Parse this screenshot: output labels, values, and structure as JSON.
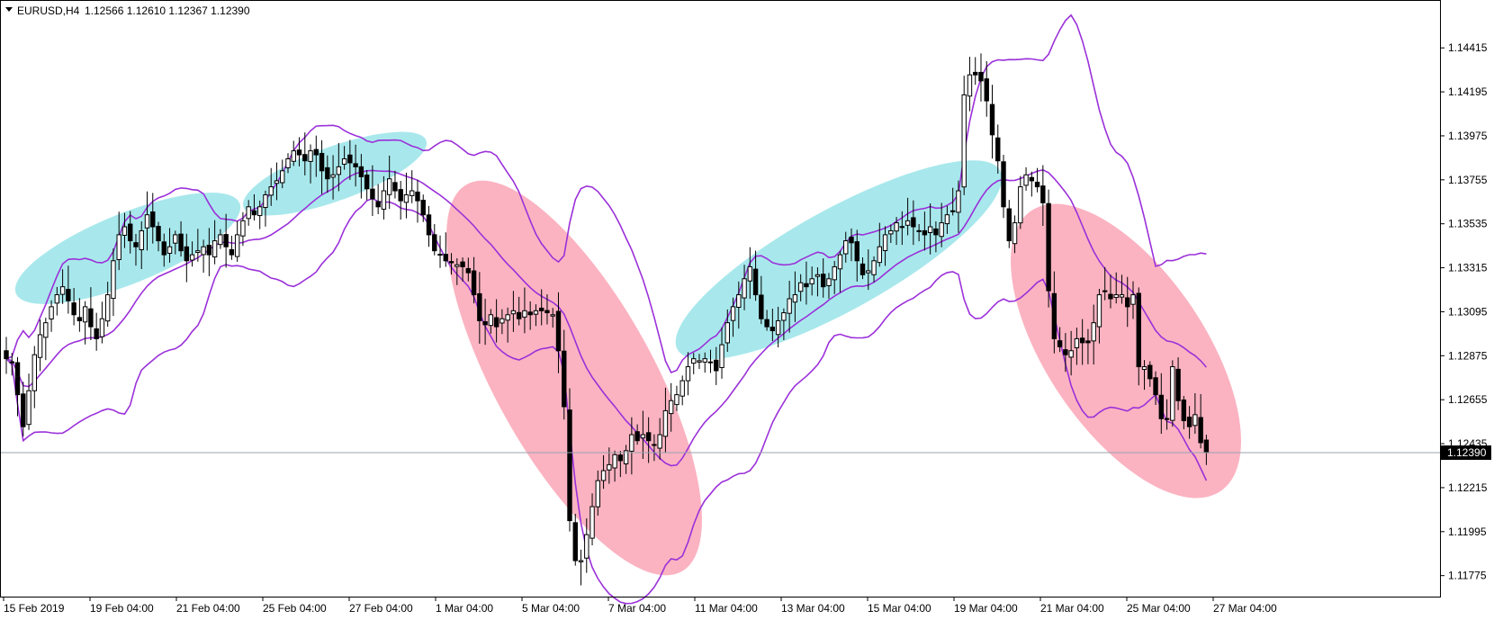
{
  "chart_data": {
    "type": "candlestick",
    "symbol": "EURUSD",
    "timeframe": "H4",
    "header": {
      "title": "EURUSD,H4",
      "ohlc": "1.12566 1.12610 1.12367 1.12390"
    },
    "y_axis": {
      "ticks": [
        "1.14415",
        "1.14195",
        "1.13975",
        "1.13755",
        "1.13535",
        "1.13315",
        "1.13095",
        "1.12875",
        "1.12655",
        "1.12435",
        "1.12215",
        "1.11995",
        "1.11775"
      ],
      "range": [
        1.1167,
        1.1465
      ]
    },
    "x_axis": {
      "ticks": [
        "15 Feb 2019",
        "19 Feb 04:00",
        "21 Feb 04:00",
        "25 Feb 04:00",
        "27 Feb 04:00",
        "1 Mar 04:00",
        "5 Mar 04:00",
        "7 Mar 04:00",
        "11 Mar 04:00",
        "13 Mar 04:00",
        "15 Mar 04:00",
        "19 Mar 04:00",
        "21 Mar 04:00",
        "25 Mar 04:00",
        "27 Mar 04:00"
      ]
    },
    "current_price": "1.12390",
    "price_line": 1.1239,
    "indicator": "Bollinger Bands",
    "colors": {
      "bands": "#9b30d9",
      "bull_candle": "#ffffff",
      "bear_candle": "#000000",
      "up_highlight": "#a8e8ec",
      "down_highlight": "#fbb3c1",
      "price_tag_bg": "#000000",
      "price_tag_text": "#ffffff"
    },
    "closes": [
      1.1286,
      1.1284,
      1.1268,
      1.1252,
      1.127,
      1.1288,
      1.1298,
      1.1304,
      1.1312,
      1.1318,
      1.1322,
      1.1315,
      1.1308,
      1.1305,
      1.1312,
      1.1302,
      1.1296,
      1.1306,
      1.1318,
      1.1335,
      1.1348,
      1.1352,
      1.1345,
      1.1342,
      1.135,
      1.1358,
      1.1352,
      1.1345,
      1.1338,
      1.1342,
      1.1348,
      1.134,
      1.1335,
      1.1338,
      1.134,
      1.1342,
      1.1338,
      1.1345,
      1.1348,
      1.1342,
      1.1338,
      1.1348,
      1.1355,
      1.1362,
      1.1358,
      1.1362,
      1.1368,
      1.1372,
      1.1375,
      1.138,
      1.1386,
      1.139,
      1.1388,
      1.1385,
      1.139,
      1.1388,
      1.138,
      1.1376,
      1.1378,
      1.1382,
      1.1386,
      1.1384,
      1.1382,
      1.1377,
      1.1371,
      1.1366,
      1.1362,
      1.137,
      1.1376,
      1.137,
      1.1365,
      1.1368,
      1.137,
      1.1365,
      1.1358,
      1.1348,
      1.134,
      1.1338,
      1.1335,
      1.1334,
      1.1333,
      1.1332,
      1.1329,
      1.1318,
      1.1305,
      1.1303,
      1.1308,
      1.1302,
      1.1306,
      1.1308,
      1.131,
      1.1306,
      1.131,
      1.1308,
      1.131,
      1.131,
      1.1309,
      1.1308,
      1.129,
      1.1262,
      1.1205,
      1.1185,
      1.1185,
      1.1198,
      1.1212,
      1.1225,
      1.123,
      1.1233,
      1.1238,
      1.1235,
      1.124,
      1.1248,
      1.1245,
      1.1248,
      1.1245,
      1.1243,
      1.1248,
      1.126,
      1.1265,
      1.1268,
      1.1275,
      1.1282,
      1.1286,
      1.1285,
      1.1286,
      1.1284,
      1.128,
      1.1293,
      1.1304,
      1.1312,
      1.1318,
      1.1326,
      1.1332,
      1.1318,
      1.1306,
      1.1302,
      1.13,
      1.1305,
      1.1309,
      1.1316,
      1.1318,
      1.1324,
      1.1322,
      1.1326,
      1.1328,
      1.1322,
      1.1326,
      1.1332,
      1.1338,
      1.1345,
      1.1344,
      1.1335,
      1.1328,
      1.133,
      1.1335,
      1.1342,
      1.1348,
      1.135,
      1.1354,
      1.1352,
      1.1355,
      1.1352,
      1.135,
      1.1348,
      1.1352,
      1.1348,
      1.1354,
      1.1358,
      1.136,
      1.137,
      1.1418,
      1.1428,
      1.1428,
      1.1425,
      1.1415,
      1.1398,
      1.1385,
      1.1362,
      1.1345,
      1.1354,
      1.1372,
      1.1378,
      1.1375,
      1.1372,
      1.1364,
      1.132,
      1.1296,
      1.1292,
      1.1288,
      1.129,
      1.1296,
      1.1294,
      1.1294,
      1.1304,
      1.1318,
      1.132,
      1.1316,
      1.1318,
      1.1318,
      1.1312,
      1.1318,
      1.1282,
      1.1282,
      1.1276,
      1.1268,
      1.1256,
      1.1256,
      1.1282,
      1.1265,
      1.1255,
      1.1252,
      1.1258,
      1.1244,
      1.1239
    ]
  }
}
